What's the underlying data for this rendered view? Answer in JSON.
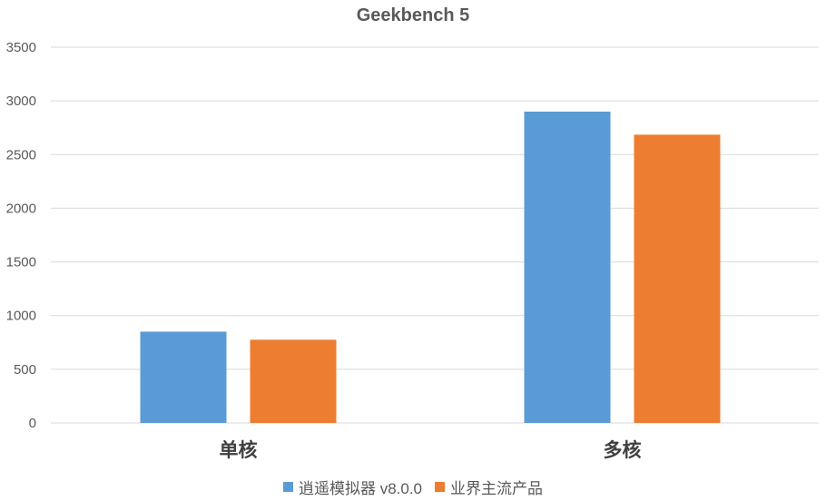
{
  "chart_data": {
    "type": "bar",
    "title": "Geekbench 5",
    "categories": [
      "单核",
      "多核"
    ],
    "series": [
      {
        "name": "逍遥模拟器 v8.0.0",
        "values": [
          850,
          2900
        ],
        "color": "#5B9BD5"
      },
      {
        "name": "业界主流产品",
        "values": [
          775,
          2685
        ],
        "color": "#ED7D31"
      }
    ],
    "yticks": [
      "0",
      "500",
      "1000",
      "1500",
      "2000",
      "2500",
      "3000",
      "3500"
    ],
    "ylim": [
      0,
      3500
    ],
    "grid": true,
    "legend_position": "bottom",
    "xlabel": "",
    "ylabel": ""
  }
}
